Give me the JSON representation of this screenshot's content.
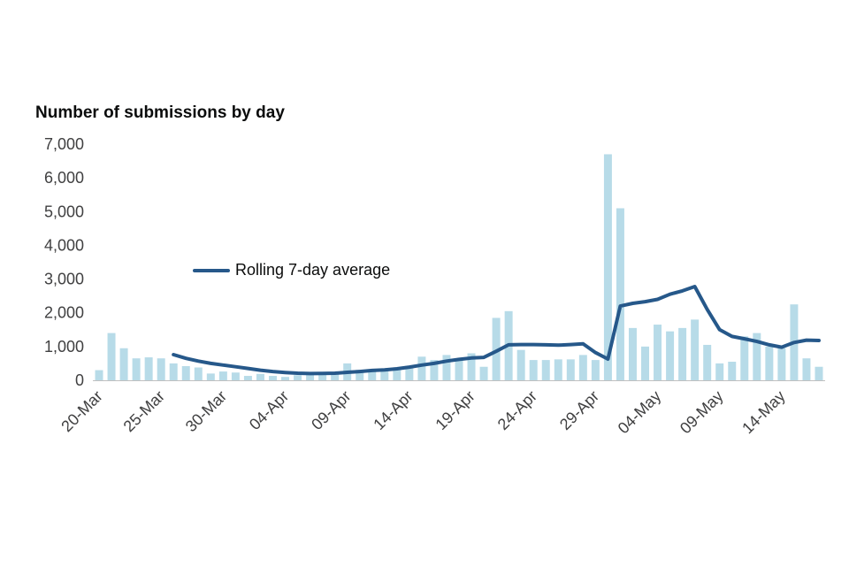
{
  "title": "Number of submissions by day",
  "chart_data": {
    "type": "bar",
    "overlay": "line",
    "title": "Number of submissions by day",
    "xlabel": "",
    "ylabel": "",
    "ylim": [
      0,
      7000
    ],
    "grid": false,
    "yticks": [
      0,
      1000,
      2000,
      3000,
      4000,
      5000,
      6000,
      7000
    ],
    "ytick_labels": [
      "0",
      "1,000",
      "2,000",
      "3,000",
      "4,000",
      "5,000",
      "6,000",
      "7,000"
    ],
    "xticks": [
      {
        "index": 0,
        "label": "20-Mar"
      },
      {
        "index": 5,
        "label": "25-Mar"
      },
      {
        "index": 10,
        "label": "30-Mar"
      },
      {
        "index": 15,
        "label": "04-Apr"
      },
      {
        "index": 20,
        "label": "09-Apr"
      },
      {
        "index": 25,
        "label": "14-Apr"
      },
      {
        "index": 30,
        "label": "19-Apr"
      },
      {
        "index": 35,
        "label": "24-Apr"
      },
      {
        "index": 40,
        "label": "29-Apr"
      },
      {
        "index": 45,
        "label": "04-May"
      },
      {
        "index": 50,
        "label": "09-May"
      },
      {
        "index": 55,
        "label": "14-May"
      }
    ],
    "dates": [
      "20-Mar",
      "21-Mar",
      "22-Mar",
      "23-Mar",
      "24-Mar",
      "25-Mar",
      "26-Mar",
      "27-Mar",
      "28-Mar",
      "29-Mar",
      "30-Mar",
      "31-Mar",
      "01-Apr",
      "02-Apr",
      "03-Apr",
      "04-Apr",
      "05-Apr",
      "06-Apr",
      "07-Apr",
      "08-Apr",
      "09-Apr",
      "10-Apr",
      "11-Apr",
      "12-Apr",
      "13-Apr",
      "14-Apr",
      "15-Apr",
      "16-Apr",
      "17-Apr",
      "18-Apr",
      "19-Apr",
      "20-Apr",
      "21-Apr",
      "22-Apr",
      "23-Apr",
      "24-Apr",
      "25-Apr",
      "26-Apr",
      "27-Apr",
      "28-Apr",
      "29-Apr",
      "30-Apr",
      "01-May",
      "02-May",
      "03-May",
      "04-May",
      "05-May",
      "06-May",
      "07-May",
      "08-May",
      "09-May",
      "10-May",
      "11-May",
      "12-May",
      "13-May",
      "14-May",
      "15-May",
      "16-May",
      "17-May"
    ],
    "bars": {
      "name": "Daily submissions",
      "color": "#b7dbe8",
      "values": [
        300,
        1400,
        950,
        650,
        680,
        650,
        500,
        420,
        380,
        200,
        260,
        230,
        130,
        190,
        130,
        100,
        150,
        180,
        200,
        180,
        500,
        310,
        300,
        280,
        300,
        430,
        700,
        600,
        750,
        650,
        800,
        400,
        1850,
        2050,
        900,
        600,
        600,
        620,
        620,
        750,
        600,
        6700,
        5100,
        1550,
        1000,
        1650,
        1450,
        1550,
        1800,
        1050,
        500,
        550,
        1300,
        1400,
        1000,
        950,
        2250,
        650,
        400
      ]
    },
    "line_series": {
      "name": "Rolling 7-day average",
      "color": "#26588a",
      "values": [
        null,
        null,
        null,
        null,
        null,
        null,
        760,
        650,
        570,
        500,
        450,
        400,
        350,
        300,
        260,
        230,
        210,
        200,
        205,
        210,
        235,
        260,
        290,
        310,
        340,
        390,
        450,
        500,
        570,
        620,
        660,
        680,
        860,
        1050,
        1060,
        1060,
        1050,
        1040,
        1060,
        1080,
        820,
        630,
        2200,
        2280,
        2330,
        2400,
        2550,
        2650,
        2780,
        2100,
        1500,
        1300,
        1230,
        1150,
        1050,
        980,
        1120,
        1190,
        1180
      ]
    },
    "legend": {
      "label": "Rolling 7-day average",
      "position": "inside-left"
    },
    "axis_color": "#bfbfbf",
    "tick_label_color": "#404041"
  }
}
